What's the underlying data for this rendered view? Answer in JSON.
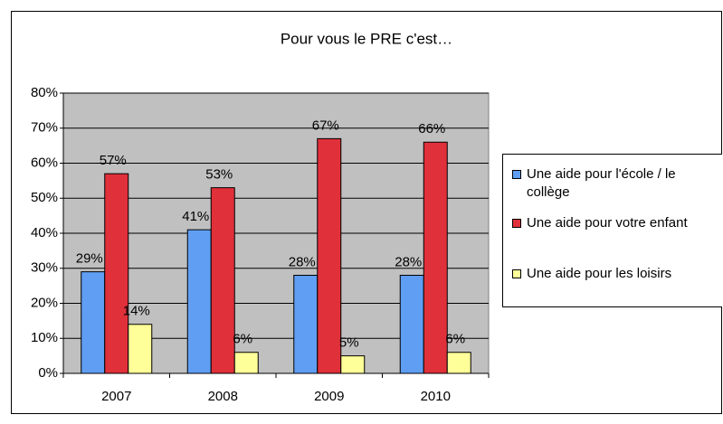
{
  "chart_data": {
    "type": "bar",
    "title": "Pour vous le PRE c'est…",
    "categories": [
      "2007",
      "2008",
      "2009",
      "2010"
    ],
    "series": [
      {
        "name": "Une aide pour l'école / le collège",
        "color": "#5f9ef2",
        "values": [
          29,
          41,
          28,
          28
        ],
        "value_labels": [
          "29%",
          "41%",
          "28%",
          "28%"
        ]
      },
      {
        "name": "Une aide pour votre enfant",
        "color": "#e0303a",
        "values": [
          57,
          53,
          67,
          66
        ],
        "value_labels": [
          "57%",
          "53%",
          "67%",
          "66%"
        ]
      },
      {
        "name": "Une aide pour les loisirs",
        "color": "#ffff99",
        "values": [
          14,
          6,
          5,
          6
        ],
        "value_labels": [
          "14%",
          "6%",
          "5%",
          "6%"
        ]
      }
    ],
    "ylim": [
      0,
      80
    ],
    "yticks": [
      {
        "value": 0,
        "label": "0%"
      },
      {
        "value": 10,
        "label": "10%"
      },
      {
        "value": 20,
        "label": "20%"
      },
      {
        "value": 30,
        "label": "30%"
      },
      {
        "value": 40,
        "label": "40%"
      },
      {
        "value": 50,
        "label": "50%"
      },
      {
        "value": 60,
        "label": "60%"
      },
      {
        "value": 70,
        "label": "70%"
      },
      {
        "value": 80,
        "label": "80%"
      }
    ],
    "grid": true
  }
}
